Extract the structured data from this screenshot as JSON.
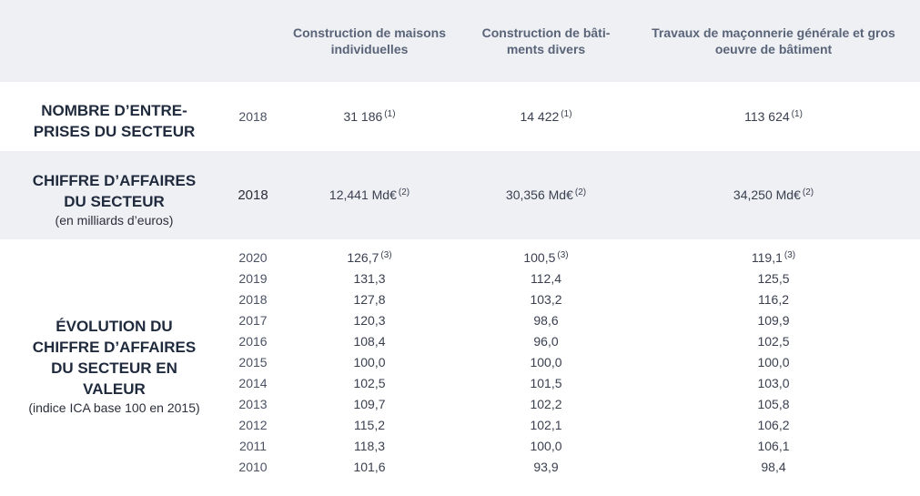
{
  "header": {
    "columns": [
      "Construction de maisons individuelles",
      "Construction de bâti-\nments divers",
      "Travaux de maçonnerie générale et gros oeuvre de bâtiment"
    ]
  },
  "entreprises": {
    "label": "NOMBRE D’ENTRE-\nPRISES DU SECTEUR",
    "year": "2018",
    "values": [
      "31 186",
      "14 422",
      "113 624"
    ],
    "note": "(1)"
  },
  "chiffre": {
    "label": "CHIFFRE D’AFFAIRES\nDU SECTEUR",
    "sublabel": "(en milliards d’euros)",
    "year": "2018",
    "values": [
      "12,441 Md€",
      "30,356 Md€",
      "34,250 Md€"
    ],
    "note": "(2)"
  },
  "evolution": {
    "label": "ÉVOLUTION DU\nCHIFFRE D’AFFAIRES\nDU SECTEUR EN\nVALEUR",
    "sublabel": "(indice ICA base 100 en 2015)",
    "note": "(3)",
    "rows": [
      {
        "year": "2020",
        "values": [
          "126,7",
          "100,5",
          "119,1"
        ]
      },
      {
        "year": "2019",
        "values": [
          "131,3",
          "112,4",
          "125,5"
        ]
      },
      {
        "year": "2018",
        "values": [
          "127,8",
          "103,2",
          "116,2"
        ]
      },
      {
        "year": "2017",
        "values": [
          "120,3",
          "98,6",
          "109,9"
        ]
      },
      {
        "year": "2016",
        "values": [
          "108,4",
          "96,0",
          "102,5"
        ]
      },
      {
        "year": "2015",
        "values": [
          "100,0",
          "100,0",
          "100,0"
        ]
      },
      {
        "year": "2014",
        "values": [
          "102,5",
          "101,5",
          "103,0"
        ]
      },
      {
        "year": "2013",
        "values": [
          "109,7",
          "102,2",
          "105,8"
        ]
      },
      {
        "year": "2012",
        "values": [
          "115,2",
          "102,1",
          "106,2"
        ]
      },
      {
        "year": "2011",
        "values": [
          "118,3",
          "100,0",
          "106,1"
        ]
      },
      {
        "year": "2010",
        "values": [
          "101,6",
          "93,9",
          "98,4"
        ]
      }
    ]
  }
}
